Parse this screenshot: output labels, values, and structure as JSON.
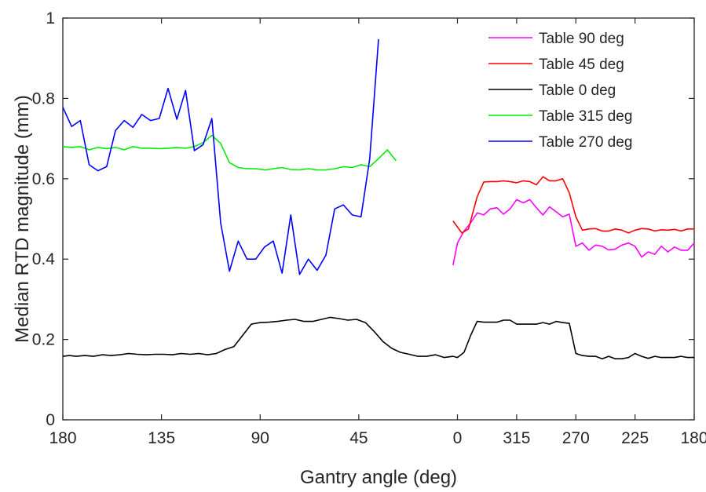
{
  "chart_data": {
    "type": "line",
    "xlabel": "Gantry angle (deg)",
    "ylabel": "Median RTD magnitude (mm)",
    "x_range": [
      180,
      0,
      180
    ],
    "x_note": "Gantry angle descends from 180 to 0 on the left half, then continues 360 (=0) down to 180 on the right half",
    "ylim": [
      0,
      1
    ],
    "x_ticks": [
      "180",
      "135",
      "90",
      "45",
      "0",
      "315",
      "270",
      "225",
      "180"
    ],
    "y_ticks": [
      "0",
      "0.2",
      "0.4",
      "0.6",
      "0.8",
      "1"
    ],
    "grid": false,
    "legend_position": "top-right",
    "series": [
      {
        "name": "Table 90 deg",
        "color": "#ff00ff",
        "points": [
          [
            -2,
            0.385
          ],
          [
            0,
            0.44
          ],
          [
            3,
            0.47
          ],
          [
            6,
            0.49
          ],
          [
            9,
            0.515
          ],
          [
            12,
            0.51
          ],
          [
            15,
            0.525
          ],
          [
            18,
            0.528
          ],
          [
            21,
            0.512
          ],
          [
            24,
            0.525
          ],
          [
            27,
            0.548
          ],
          [
            30,
            0.54
          ],
          [
            33,
            0.548
          ],
          [
            36,
            0.528
          ],
          [
            39,
            0.51
          ],
          [
            42,
            0.53
          ],
          [
            45,
            0.518
          ],
          [
            48,
            0.505
          ],
          [
            51,
            0.512
          ],
          [
            54,
            0.432
          ],
          [
            57,
            0.44
          ],
          [
            60,
            0.422
          ],
          [
            63,
            0.435
          ],
          [
            66,
            0.432
          ],
          [
            69,
            0.423
          ],
          [
            72,
            0.425
          ],
          [
            75,
            0.435
          ],
          [
            78,
            0.44
          ],
          [
            81,
            0.432
          ],
          [
            84,
            0.405
          ],
          [
            87,
            0.418
          ],
          [
            90,
            0.412
          ],
          [
            93,
            0.432
          ],
          [
            96,
            0.418
          ],
          [
            99,
            0.43
          ],
          [
            102,
            0.422
          ],
          [
            105,
            0.422
          ],
          [
            108,
            0.44
          ]
        ]
      },
      {
        "name": "Table 45 deg",
        "color": "#ff0000",
        "points": [
          [
            -2,
            0.495
          ],
          [
            2,
            0.465
          ],
          [
            5,
            0.475
          ],
          [
            9,
            0.555
          ],
          [
            12,
            0.592
          ],
          [
            15,
            0.593
          ],
          [
            18,
            0.593
          ],
          [
            21,
            0.595
          ],
          [
            24,
            0.593
          ],
          [
            27,
            0.59
          ],
          [
            30,
            0.595
          ],
          [
            33,
            0.593
          ],
          [
            36,
            0.585
          ],
          [
            39,
            0.605
          ],
          [
            42,
            0.595
          ],
          [
            45,
            0.595
          ],
          [
            48,
            0.6
          ],
          [
            51,
            0.565
          ],
          [
            54,
            0.505
          ],
          [
            57,
            0.472
          ],
          [
            60,
            0.475
          ],
          [
            63,
            0.476
          ],
          [
            66,
            0.47
          ],
          [
            69,
            0.47
          ],
          [
            72,
            0.475
          ],
          [
            75,
            0.472
          ],
          [
            78,
            0.465
          ],
          [
            81,
            0.472
          ],
          [
            84,
            0.476
          ],
          [
            87,
            0.475
          ],
          [
            90,
            0.47
          ],
          [
            93,
            0.473
          ],
          [
            96,
            0.472
          ],
          [
            99,
            0.474
          ],
          [
            102,
            0.47
          ],
          [
            105,
            0.475
          ],
          [
            108,
            0.475
          ]
        ]
      },
      {
        "name": "Table 0 deg",
        "color": "#000000",
        "points": [
          [
            -180,
            0.158
          ],
          [
            -177,
            0.16
          ],
          [
            -174,
            0.158
          ],
          [
            -170,
            0.16
          ],
          [
            -166,
            0.158
          ],
          [
            -162,
            0.162
          ],
          [
            -158,
            0.16
          ],
          [
            -154,
            0.162
          ],
          [
            -150,
            0.165
          ],
          [
            -146,
            0.163
          ],
          [
            -142,
            0.162
          ],
          [
            -138,
            0.163
          ],
          [
            -134,
            0.163
          ],
          [
            -130,
            0.162
          ],
          [
            -126,
            0.165
          ],
          [
            -122,
            0.163
          ],
          [
            -118,
            0.165
          ],
          [
            -114,
            0.162
          ],
          [
            -110,
            0.165
          ],
          [
            -106,
            0.175
          ],
          [
            -102,
            0.182
          ],
          [
            -98,
            0.21
          ],
          [
            -94,
            0.238
          ],
          [
            -90,
            0.242
          ],
          [
            -86,
            0.243
          ],
          [
            -82,
            0.245
          ],
          [
            -78,
            0.248
          ],
          [
            -74,
            0.25
          ],
          [
            -70,
            0.245
          ],
          [
            -66,
            0.245
          ],
          [
            -62,
            0.25
          ],
          [
            -58,
            0.255
          ],
          [
            -54,
            0.252
          ],
          [
            -50,
            0.248
          ],
          [
            -46,
            0.25
          ],
          [
            -42,
            0.242
          ],
          [
            -38,
            0.22
          ],
          [
            -34,
            0.195
          ],
          [
            -30,
            0.178
          ],
          [
            -26,
            0.168
          ],
          [
            -22,
            0.163
          ],
          [
            -18,
            0.158
          ],
          [
            -14,
            0.158
          ],
          [
            -10,
            0.162
          ],
          [
            -6,
            0.155
          ],
          [
            -2,
            0.158
          ],
          [
            0,
            0.155
          ],
          [
            3,
            0.168
          ],
          [
            6,
            0.21
          ],
          [
            9,
            0.245
          ],
          [
            12,
            0.243
          ],
          [
            15,
            0.243
          ],
          [
            18,
            0.243
          ],
          [
            21,
            0.248
          ],
          [
            24,
            0.248
          ],
          [
            27,
            0.238
          ],
          [
            30,
            0.238
          ],
          [
            33,
            0.238
          ],
          [
            36,
            0.238
          ],
          [
            39,
            0.242
          ],
          [
            42,
            0.238
          ],
          [
            45,
            0.245
          ],
          [
            48,
            0.242
          ],
          [
            51,
            0.24
          ],
          [
            54,
            0.165
          ],
          [
            57,
            0.16
          ],
          [
            60,
            0.158
          ],
          [
            63,
            0.158
          ],
          [
            66,
            0.152
          ],
          [
            69,
            0.158
          ],
          [
            72,
            0.152
          ],
          [
            75,
            0.152
          ],
          [
            78,
            0.155
          ],
          [
            81,
            0.165
          ],
          [
            84,
            0.158
          ],
          [
            87,
            0.153
          ],
          [
            90,
            0.158
          ],
          [
            93,
            0.155
          ],
          [
            96,
            0.155
          ],
          [
            99,
            0.155
          ],
          [
            102,
            0.158
          ],
          [
            105,
            0.155
          ],
          [
            108,
            0.155
          ]
        ]
      },
      {
        "name": "Table 315 deg",
        "color": "#00ee00",
        "points": [
          [
            -180,
            0.68
          ],
          [
            -176,
            0.678
          ],
          [
            -172,
            0.68
          ],
          [
            -168,
            0.672
          ],
          [
            -164,
            0.678
          ],
          [
            -160,
            0.675
          ],
          [
            -156,
            0.678
          ],
          [
            -152,
            0.672
          ],
          [
            -148,
            0.68
          ],
          [
            -144,
            0.676
          ],
          [
            -140,
            0.676
          ],
          [
            -136,
            0.675
          ],
          [
            -132,
            0.676
          ],
          [
            -128,
            0.678
          ],
          [
            -124,
            0.676
          ],
          [
            -120,
            0.68
          ],
          [
            -116,
            0.69
          ],
          [
            -112,
            0.708
          ],
          [
            -108,
            0.688
          ],
          [
            -104,
            0.64
          ],
          [
            -100,
            0.628
          ],
          [
            -96,
            0.625
          ],
          [
            -92,
            0.625
          ],
          [
            -88,
            0.622
          ],
          [
            -84,
            0.625
          ],
          [
            -80,
            0.628
          ],
          [
            -76,
            0.623
          ],
          [
            -72,
            0.622
          ],
          [
            -68,
            0.625
          ],
          [
            -64,
            0.622
          ],
          [
            -60,
            0.622
          ],
          [
            -56,
            0.625
          ],
          [
            -52,
            0.63
          ],
          [
            -48,
            0.628
          ],
          [
            -44,
            0.635
          ],
          [
            -40,
            0.63
          ],
          [
            -36,
            0.65
          ],
          [
            -32,
            0.672
          ],
          [
            -28,
            0.645
          ]
        ]
      },
      {
        "name": "Table 270 deg",
        "color": "#0000ff",
        "points": [
          [
            -180,
            0.778
          ],
          [
            -176,
            0.73
          ],
          [
            -172,
            0.745
          ],
          [
            -168,
            0.635
          ],
          [
            -164,
            0.62
          ],
          [
            -160,
            0.63
          ],
          [
            -156,
            0.72
          ],
          [
            -152,
            0.745
          ],
          [
            -148,
            0.728
          ],
          [
            -144,
            0.76
          ],
          [
            -140,
            0.745
          ],
          [
            -136,
            0.75
          ],
          [
            -132,
            0.825
          ],
          [
            -128,
            0.748
          ],
          [
            -124,
            0.82
          ],
          [
            -120,
            0.67
          ],
          [
            -116,
            0.685
          ],
          [
            -112,
            0.75
          ],
          [
            -108,
            0.49
          ],
          [
            -104,
            0.37
          ],
          [
            -100,
            0.445
          ],
          [
            -96,
            0.4
          ],
          [
            -92,
            0.4
          ],
          [
            -88,
            0.43
          ],
          [
            -84,
            0.445
          ],
          [
            -80,
            0.365
          ],
          [
            -76,
            0.51
          ],
          [
            -72,
            0.362
          ],
          [
            -68,
            0.4
          ],
          [
            -64,
            0.372
          ],
          [
            -60,
            0.41
          ],
          [
            -56,
            0.525
          ],
          [
            -52,
            0.535
          ],
          [
            -48,
            0.51
          ],
          [
            -44,
            0.505
          ],
          [
            -40,
            0.65
          ],
          [
            -36,
            0.947
          ]
        ]
      }
    ]
  }
}
